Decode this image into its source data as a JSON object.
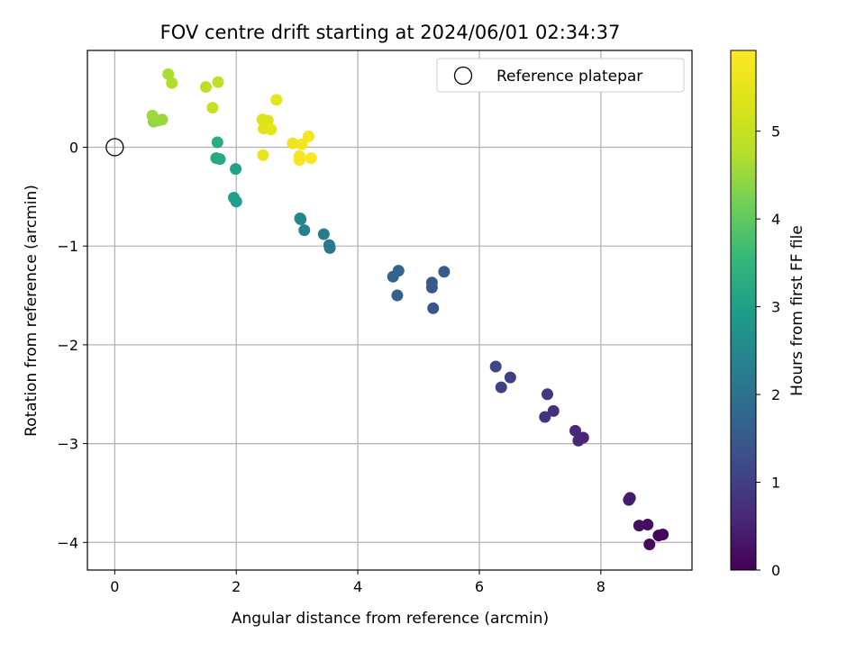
{
  "chart_data": {
    "type": "scatter",
    "title": "FOV centre drift starting at 2024/06/01 02:34:37",
    "xlabel": "Angular distance from reference (arcmin)",
    "ylabel": "Rotation from reference (arcmin)",
    "xlim": [
      -0.45,
      9.5
    ],
    "ylim": [
      -4.28,
      0.98
    ],
    "x_ticks": [
      {
        "value": 0,
        "label": "0"
      },
      {
        "value": 2,
        "label": "2"
      },
      {
        "value": 4,
        "label": "4"
      },
      {
        "value": 6,
        "label": "6"
      },
      {
        "value": 8,
        "label": "8"
      }
    ],
    "y_ticks": [
      {
        "value": 0,
        "label": "0"
      },
      {
        "value": -1,
        "label": "−1"
      },
      {
        "value": -2,
        "label": "−2"
      },
      {
        "value": -3,
        "label": "−3"
      },
      {
        "value": -4,
        "label": "−4"
      }
    ],
    "grid": true,
    "legend": {
      "placement": "top-right",
      "entries": [
        {
          "label": "Reference platepar",
          "marker": "open-circle"
        }
      ]
    },
    "reference_point": {
      "x": 0,
      "y": 0
    },
    "colorbar": {
      "label": "Hours from first FF file",
      "colormap": "viridis",
      "range": [
        0,
        5.92
      ],
      "ticks": [
        {
          "value": 0,
          "label": "0"
        },
        {
          "value": 1,
          "label": "1"
        },
        {
          "value": 2,
          "label": "2"
        },
        {
          "value": 3,
          "label": "3"
        },
        {
          "value": 4,
          "label": "4"
        },
        {
          "value": 5,
          "label": "5"
        }
      ]
    },
    "points": [
      {
        "x": 8.95,
        "y": -3.93,
        "c": 0.05
      },
      {
        "x": 9.02,
        "y": -3.92,
        "c": 0.1
      },
      {
        "x": 8.8,
        "y": -4.02,
        "c": 0.15
      },
      {
        "x": 8.77,
        "y": -3.82,
        "c": 0.2
      },
      {
        "x": 8.63,
        "y": -3.83,
        "c": 0.25
      },
      {
        "x": 8.48,
        "y": -3.55,
        "c": 0.35
      },
      {
        "x": 8.46,
        "y": -3.57,
        "c": 0.4
      },
      {
        "x": 7.71,
        "y": -2.94,
        "c": 0.55
      },
      {
        "x": 7.63,
        "y": -2.97,
        "c": 0.6
      },
      {
        "x": 7.58,
        "y": -2.87,
        "c": 0.65
      },
      {
        "x": 7.22,
        "y": -2.67,
        "c": 0.72
      },
      {
        "x": 7.08,
        "y": -2.73,
        "c": 0.78
      },
      {
        "x": 7.12,
        "y": -2.5,
        "c": 0.85
      },
      {
        "x": 6.51,
        "y": -2.33,
        "c": 1.0
      },
      {
        "x": 6.36,
        "y": -2.43,
        "c": 1.05
      },
      {
        "x": 6.27,
        "y": -2.22,
        "c": 1.1
      },
      {
        "x": 5.24,
        "y": -1.63,
        "c": 1.4
      },
      {
        "x": 5.22,
        "y": -1.42,
        "c": 1.45
      },
      {
        "x": 5.22,
        "y": -1.37,
        "c": 1.5
      },
      {
        "x": 5.42,
        "y": -1.26,
        "c": 1.55
      },
      {
        "x": 4.65,
        "y": -1.5,
        "c": 1.6
      },
      {
        "x": 4.58,
        "y": -1.31,
        "c": 1.65
      },
      {
        "x": 4.67,
        "y": -1.25,
        "c": 1.7
      },
      {
        "x": 3.54,
        "y": -1.02,
        "c": 2.1
      },
      {
        "x": 3.53,
        "y": -0.99,
        "c": 2.15
      },
      {
        "x": 3.44,
        "y": -0.88,
        "c": 2.2
      },
      {
        "x": 3.12,
        "y": -0.84,
        "c": 2.35
      },
      {
        "x": 3.06,
        "y": -0.73,
        "c": 2.4
      },
      {
        "x": 3.05,
        "y": -0.72,
        "c": 2.45
      },
      {
        "x": 2.0,
        "y": -0.55,
        "c": 2.95
      },
      {
        "x": 1.96,
        "y": -0.51,
        "c": 3.0
      },
      {
        "x": 1.99,
        "y": -0.22,
        "c": 3.05
      },
      {
        "x": 1.67,
        "y": -0.11,
        "c": 3.15
      },
      {
        "x": 1.73,
        "y": -0.12,
        "c": 3.2
      },
      {
        "x": 1.69,
        "y": 0.05,
        "c": 3.3
      },
      {
        "x": 0.64,
        "y": 0.26,
        "c": 4.4
      },
      {
        "x": 0.71,
        "y": 0.27,
        "c": 4.45
      },
      {
        "x": 0.78,
        "y": 0.28,
        "c": 4.5
      },
      {
        "x": 0.62,
        "y": 0.32,
        "c": 4.55
      },
      {
        "x": 0.88,
        "y": 0.74,
        "c": 4.65
      },
      {
        "x": 0.94,
        "y": 0.65,
        "c": 4.7
      },
      {
        "x": 1.5,
        "y": 0.61,
        "c": 4.85
      },
      {
        "x": 1.7,
        "y": 0.66,
        "c": 4.9
      },
      {
        "x": 1.61,
        "y": 0.4,
        "c": 5.0
      },
      {
        "x": 2.43,
        "y": 0.28,
        "c": 5.3
      },
      {
        "x": 2.52,
        "y": 0.27,
        "c": 5.35
      },
      {
        "x": 2.45,
        "y": 0.19,
        "c": 5.4
      },
      {
        "x": 2.57,
        "y": 0.18,
        "c": 5.45
      },
      {
        "x": 2.66,
        "y": 0.48,
        "c": 5.5
      },
      {
        "x": 2.44,
        "y": -0.08,
        "c": 5.55
      },
      {
        "x": 2.93,
        "y": 0.04,
        "c": 5.65
      },
      {
        "x": 3.08,
        "y": 0.03,
        "c": 5.7
      },
      {
        "x": 3.19,
        "y": 0.11,
        "c": 5.75
      },
      {
        "x": 3.04,
        "y": -0.09,
        "c": 5.78
      },
      {
        "x": 3.04,
        "y": -0.13,
        "c": 5.82
      },
      {
        "x": 3.23,
        "y": -0.11,
        "c": 5.87
      }
    ]
  }
}
